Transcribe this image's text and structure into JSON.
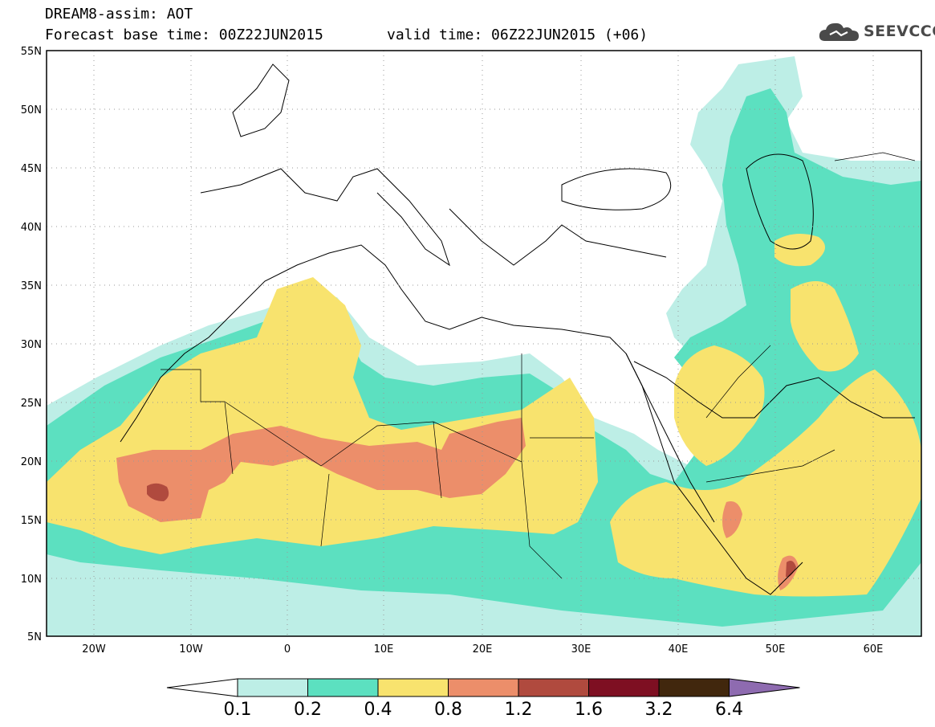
{
  "header": {
    "line1": "DREAM8-assim: AOT",
    "line2": "Forecast base time: 00Z22JUN2015",
    "valid": "valid time: 06Z22JUN2015 (+06)"
  },
  "logo": {
    "text": "SEEVCCC",
    "icon": "cloud-icon"
  },
  "map": {
    "lat_labels": [
      "55N",
      "50N",
      "45N",
      "40N",
      "35N",
      "30N",
      "25N",
      "20N",
      "15N",
      "10N",
      "5N"
    ],
    "lon_labels": [
      "20W",
      "10W",
      "0",
      "10E",
      "20E",
      "30E",
      "40E",
      "50E",
      "60E"
    ]
  },
  "colorbar": {
    "labels": [
      "0.1",
      "0.2",
      "0.4",
      "0.8",
      "1.2",
      "1.6",
      "3.2",
      "6.4"
    ],
    "colors": [
      "#ffffff",
      "#bdeee6",
      "#5ce0c0",
      "#f8e36e",
      "#ec8e6a",
      "#b04a3e",
      "#7e0f22",
      "#41270d",
      "#8e6bb0"
    ]
  }
}
